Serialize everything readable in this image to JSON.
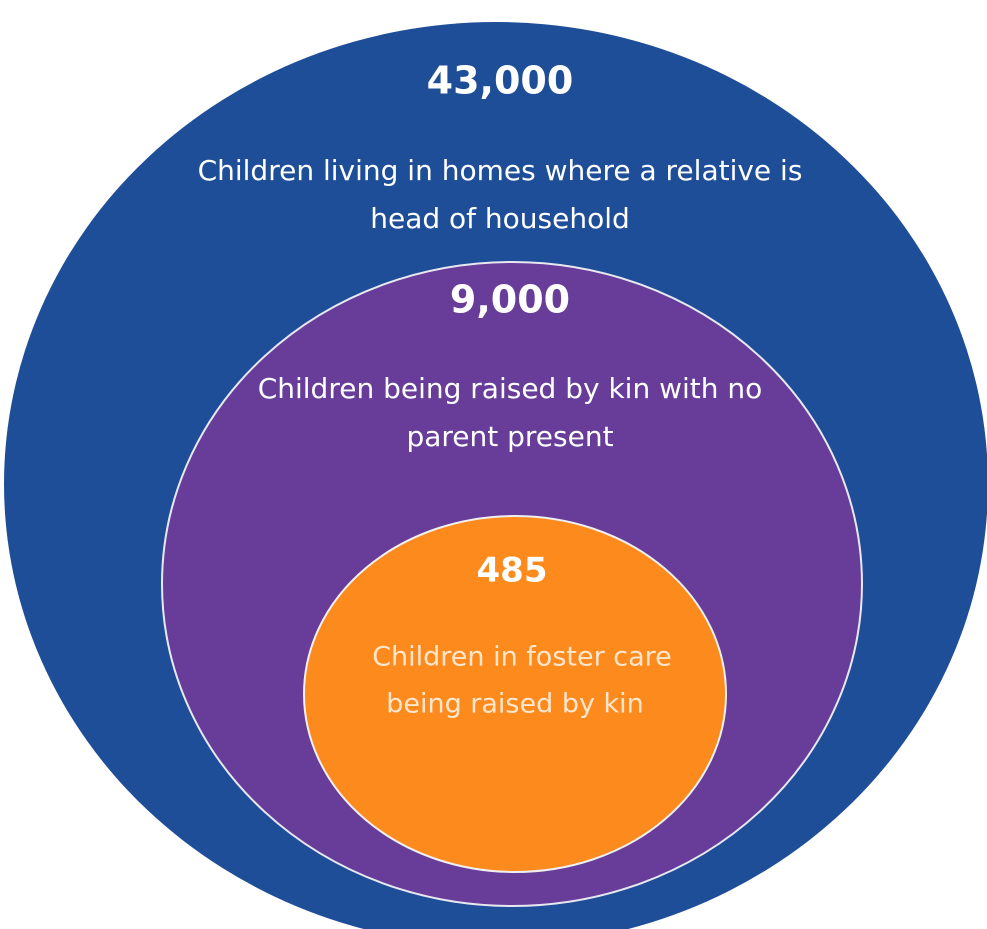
{
  "circles": [
    {
      "value": "43,000",
      "label": [
        "Children living in homes where a relative is",
        "head of household"
      ]
    },
    {
      "value": "9,000",
      "label": [
        "Children being raised by kin with no",
        "parent present"
      ]
    },
    {
      "value": "485",
      "label": [
        "Children in foster care",
        "being raised by kin"
      ]
    }
  ]
}
